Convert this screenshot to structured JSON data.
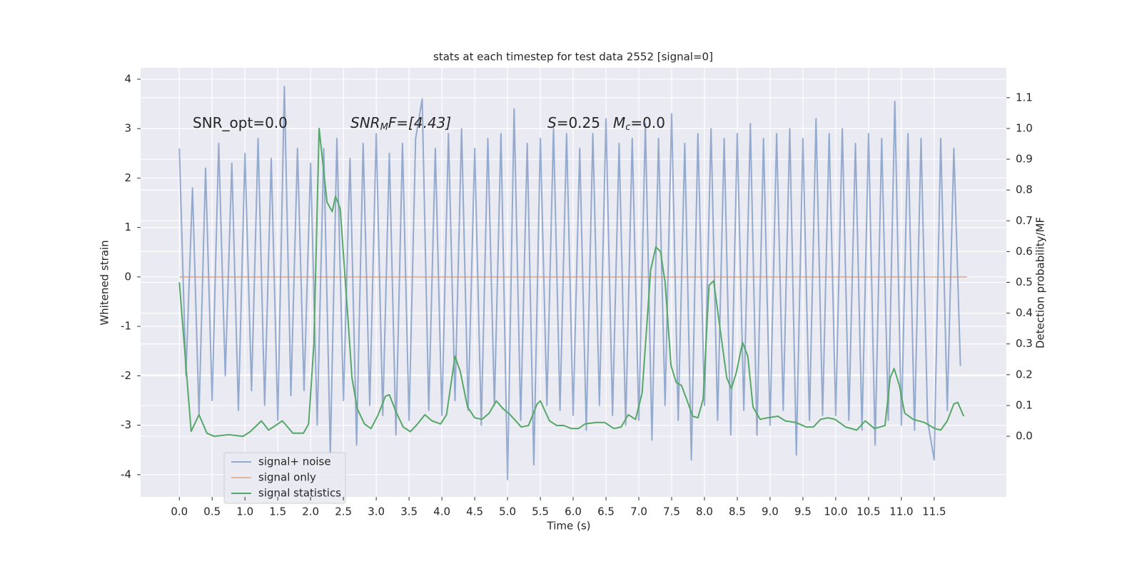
{
  "chart_data": {
    "type": "line",
    "title": "stats at each timestep for test data 2552 [signal=0]",
    "xlabel": "Time (s)",
    "ylabel": "Whitened strain",
    "y2label": "Detection probability/MF",
    "grid": true,
    "legend": "lower left",
    "xlim": [
      -0.59,
      12.6
    ],
    "ylim": [
      -4.45,
      4.23
    ],
    "y2lim": [
      -0.197,
      1.197
    ],
    "xticks": [
      {
        "value": 0,
        "label": "0.0"
      },
      {
        "value": 0.5,
        "label": "0.5"
      },
      {
        "value": 1,
        "label": "1.0"
      },
      {
        "value": 1.5,
        "label": "1.5"
      },
      {
        "value": 2,
        "label": "2.0"
      },
      {
        "value": 2.5,
        "label": "2.5"
      },
      {
        "value": 3,
        "label": "3.0"
      },
      {
        "value": 3.5,
        "label": "3.5"
      },
      {
        "value": 4,
        "label": "4.0"
      },
      {
        "value": 4.5,
        "label": "4.5"
      },
      {
        "value": 5,
        "label": "5.0"
      },
      {
        "value": 5.5,
        "label": "5.5"
      },
      {
        "value": 6,
        "label": "6.0"
      },
      {
        "value": 6.5,
        "label": "6.5"
      },
      {
        "value": 7,
        "label": "7.0"
      },
      {
        "value": 7.5,
        "label": "7.5"
      },
      {
        "value": 8,
        "label": "8.0"
      },
      {
        "value": 8.5,
        "label": "8.5"
      },
      {
        "value": 9,
        "label": "9.0"
      },
      {
        "value": 9.5,
        "label": "9.5"
      },
      {
        "value": 10,
        "label": "10.0"
      },
      {
        "value": 10.5,
        "label": "10.5"
      },
      {
        "value": 11,
        "label": "11.0"
      },
      {
        "value": 11.5,
        "label": "11.5"
      }
    ],
    "yticks": [
      -4,
      -3,
      -2,
      -1,
      0,
      1,
      2,
      3,
      4
    ],
    "y2ticks": [
      {
        "value": 0,
        "label": "0.0"
      },
      {
        "value": 0.1,
        "label": "0.1"
      },
      {
        "value": 0.2,
        "label": "0.2"
      },
      {
        "value": 0.3,
        "label": "0.3"
      },
      {
        "value": 0.4,
        "label": "0.4"
      },
      {
        "value": 0.5,
        "label": "0.5"
      },
      {
        "value": 0.6,
        "label": "0.6"
      },
      {
        "value": 0.7,
        "label": "0.7"
      },
      {
        "value": 0.8,
        "label": "0.8"
      },
      {
        "value": 0.9,
        "label": "0.9"
      },
      {
        "value": 1,
        "label": "1.0"
      },
      {
        "value": 1.1,
        "label": "1.1"
      }
    ],
    "annotations": [
      {
        "parts": [
          "SNR_opt=0.0"
        ]
      },
      {
        "parts": [
          "SNR",
          "M",
          "F=[4.43]"
        ]
      },
      {
        "parts": [
          "S",
          "=0.25",
          "M",
          "c",
          "=0.0"
        ]
      }
    ],
    "series": [
      {
        "name": "signal+ noise",
        "color": "#4c72b0",
        "axis": "y",
        "x": [
          0.0,
          0.1,
          0.2,
          0.3,
          0.4,
          0.5,
          0.6,
          0.7,
          0.8,
          0.9,
          1.0,
          1.1,
          1.2,
          1.3,
          1.4,
          1.5,
          1.6,
          1.7,
          1.8,
          1.9,
          2.0,
          2.1,
          2.2,
          2.3,
          2.4,
          2.5,
          2.6,
          2.7,
          2.8,
          2.9,
          3.0,
          3.1,
          3.2,
          3.3,
          3.4,
          3.5,
          3.6,
          3.7,
          3.8,
          3.9,
          4.0,
          4.1,
          4.2,
          4.3,
          4.4,
          4.5,
          4.6,
          4.7,
          4.8,
          4.9,
          5.0,
          5.1,
          5.2,
          5.3,
          5.4,
          5.5,
          5.6,
          5.7,
          5.8,
          5.9,
          6.0,
          6.1,
          6.2,
          6.3,
          6.4,
          6.5,
          6.6,
          6.7,
          6.8,
          6.9,
          7.0,
          7.1,
          7.2,
          7.3,
          7.4,
          7.5,
          7.6,
          7.7,
          7.8,
          7.9,
          8.0,
          8.1,
          8.2,
          8.3,
          8.4,
          8.5,
          8.6,
          8.7,
          8.8,
          8.9,
          9.0,
          9.1,
          9.2,
          9.3,
          9.4,
          9.5,
          9.6,
          9.7,
          9.8,
          9.9,
          10.0,
          10.1,
          10.2,
          10.3,
          10.4,
          10.5,
          10.6,
          10.7,
          10.8,
          10.9,
          11.0,
          11.1,
          11.2,
          11.3,
          11.4,
          11.5,
          11.6,
          11.7,
          11.8,
          11.9
        ],
        "values": [
          2.6,
          -2.0,
          1.8,
          -2.8,
          2.2,
          -2.5,
          2.7,
          -2.0,
          2.3,
          -2.7,
          2.5,
          -2.3,
          2.8,
          -2.6,
          2.4,
          -2.9,
          3.85,
          -2.4,
          2.6,
          -2.3,
          2.3,
          -3.0,
          2.6,
          -3.6,
          2.8,
          -2.5,
          2.4,
          -3.4,
          2.7,
          -2.6,
          2.9,
          -2.8,
          2.5,
          -3.2,
          2.7,
          -2.9,
          2.8,
          3.6,
          -2.7,
          2.6,
          -2.8,
          2.9,
          -2.5,
          3.0,
          -2.7,
          2.6,
          -3.0,
          2.8,
          -2.6,
          2.9,
          -4.1,
          3.4,
          -2.9,
          2.7,
          -3.8,
          2.8,
          -2.6,
          3.0,
          -2.7,
          2.9,
          -2.8,
          2.6,
          -3.1,
          2.9,
          -2.6,
          3.2,
          -2.8,
          2.7,
          -3.0,
          2.8,
          -2.9,
          3.1,
          -3.3,
          2.8,
          -2.6,
          3.3,
          -2.9,
          2.7,
          -3.7,
          2.9,
          -2.6,
          3.0,
          -2.9,
          2.8,
          -3.2,
          2.9,
          -2.7,
          3.1,
          -3.2,
          2.8,
          -3.0,
          2.9,
          -2.7,
          3.0,
          -3.6,
          2.8,
          -2.9,
          3.2,
          -2.8,
          2.9,
          -2.8,
          3.0,
          -2.9,
          2.7,
          -3.1,
          2.9,
          -3.4,
          2.8,
          -2.9,
          3.55,
          -3.0,
          2.9,
          -3.1,
          2.8,
          -2.9,
          -3.7,
          2.8,
          -2.7,
          2.6,
          -1.8
        ]
      },
      {
        "name": "signal only",
        "color": "#dd8452",
        "axis": "y",
        "x": [
          0.0,
          12.0
        ],
        "values": [
          0,
          0
        ]
      },
      {
        "name": "signal statistics",
        "color": "#55a868",
        "axis": "y2",
        "x": [
          0.0,
          0.1,
          0.18,
          0.3,
          0.42,
          0.53,
          0.75,
          0.97,
          1.08,
          1.25,
          1.36,
          1.57,
          1.73,
          1.89,
          1.97,
          2.05,
          2.13,
          2.25,
          2.33,
          2.38,
          2.45,
          2.58,
          2.63,
          2.71,
          2.82,
          2.92,
          3.03,
          3.14,
          3.2,
          3.3,
          3.41,
          3.52,
          3.63,
          3.74,
          3.85,
          3.98,
          4.07,
          4.2,
          4.28,
          4.39,
          4.5,
          4.61,
          4.72,
          4.83,
          4.93,
          5.04,
          5.21,
          5.32,
          5.45,
          5.5,
          5.64,
          5.75,
          5.86,
          5.97,
          6.08,
          6.18,
          6.35,
          6.48,
          6.62,
          6.73,
          6.84,
          6.95,
          7.05,
          7.18,
          7.26,
          7.33,
          7.4,
          7.49,
          7.57,
          7.65,
          7.73,
          7.82,
          7.9,
          7.98,
          8.07,
          8.14,
          8.25,
          8.34,
          8.41,
          8.49,
          8.58,
          8.66,
          8.74,
          8.85,
          8.96,
          9.12,
          9.23,
          9.39,
          9.55,
          9.66,
          9.77,
          9.88,
          9.99,
          10.15,
          10.32,
          10.45,
          10.59,
          10.75,
          10.83,
          10.89,
          10.97,
          11.05,
          11.18,
          11.35,
          11.51,
          11.6,
          11.7,
          11.8,
          11.86,
          11.95
        ],
        "values": [
          0.5,
          0.23,
          0.016,
          0.07,
          0.01,
          0.0,
          0.005,
          0.0,
          0.015,
          0.05,
          0.02,
          0.05,
          0.01,
          0.01,
          0.04,
          0.3,
          1.0,
          0.76,
          0.73,
          0.78,
          0.74,
          0.35,
          0.19,
          0.09,
          0.04,
          0.025,
          0.07,
          0.13,
          0.135,
          0.08,
          0.03,
          0.015,
          0.04,
          0.07,
          0.05,
          0.04,
          0.07,
          0.26,
          0.21,
          0.095,
          0.06,
          0.055,
          0.075,
          0.115,
          0.09,
          0.07,
          0.03,
          0.035,
          0.105,
          0.115,
          0.05,
          0.035,
          0.035,
          0.025,
          0.025,
          0.04,
          0.045,
          0.045,
          0.025,
          0.03,
          0.07,
          0.055,
          0.14,
          0.54,
          0.615,
          0.6,
          0.5,
          0.23,
          0.175,
          0.165,
          0.12,
          0.065,
          0.06,
          0.12,
          0.49,
          0.505,
          0.33,
          0.19,
          0.155,
          0.21,
          0.305,
          0.26,
          0.095,
          0.055,
          0.06,
          0.065,
          0.05,
          0.045,
          0.03,
          0.03,
          0.055,
          0.06,
          0.055,
          0.03,
          0.02,
          0.05,
          0.025,
          0.035,
          0.19,
          0.22,
          0.165,
          0.075,
          0.055,
          0.045,
          0.025,
          0.02,
          0.05,
          0.105,
          0.11,
          0.065
        ]
      }
    ]
  }
}
